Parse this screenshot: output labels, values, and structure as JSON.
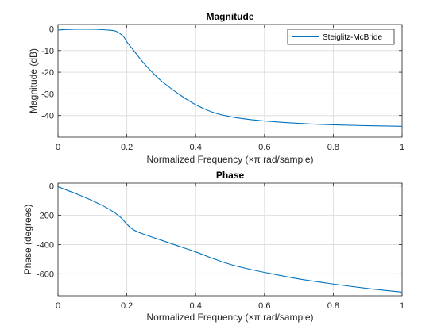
{
  "chart_data": [
    {
      "type": "line",
      "title": "Magnitude",
      "xlabel": "Normalized  Frequency    (×π  rad/sample)",
      "ylabel": "Magnitude (dB)",
      "xlim": [
        0,
        1
      ],
      "ylim": [
        -50,
        2
      ],
      "xticks": [
        0,
        0.2,
        0.4,
        0.6,
        0.8,
        1
      ],
      "xtick_labels": [
        "0",
        "0.2",
        "0.4",
        "0.6",
        "0.8",
        "1"
      ],
      "yticks": [
        0,
        -10,
        -20,
        -30,
        -40
      ],
      "ytick_labels": [
        "0",
        "-10",
        "-20",
        "-30",
        "-40"
      ],
      "grid": true,
      "legend": {
        "placement": "top-right",
        "entries": [
          "Steiglitz-McBride"
        ]
      },
      "series": [
        {
          "name": "Steiglitz-McBride",
          "color": "#0072bd",
          "x": [
            0,
            0.05,
            0.1,
            0.15,
            0.17,
            0.19,
            0.2,
            0.22,
            0.25,
            0.28,
            0.3,
            0.35,
            0.4,
            0.45,
            0.5,
            0.55,
            0.6,
            0.7,
            0.8,
            0.9,
            1.0
          ],
          "y": [
            -0.5,
            -0.2,
            -0.2,
            -0.6,
            -1.2,
            -3.5,
            -6,
            -10,
            -16,
            -21,
            -24,
            -30,
            -35,
            -38.5,
            -40.5,
            -41.7,
            -42.5,
            -43.6,
            -44.3,
            -44.7,
            -45
          ]
        }
      ]
    },
    {
      "type": "line",
      "title": "Phase",
      "xlabel": "Normalized  Frequency    (×π  rad/sample)",
      "ylabel": "Phase (degrees)",
      "xlim": [
        0,
        1
      ],
      "ylim": [
        -750,
        20
      ],
      "xticks": [
        0,
        0.2,
        0.4,
        0.6,
        0.8,
        1
      ],
      "xtick_labels": [
        "0",
        "0.2",
        "0.4",
        "0.6",
        "0.8",
        "1"
      ],
      "yticks": [
        0,
        -200,
        -400,
        -600
      ],
      "ytick_labels": [
        "0",
        "-200",
        "-400",
        "-600"
      ],
      "grid": true,
      "series": [
        {
          "color": "#0072bd",
          "x": [
            0,
            0.05,
            0.1,
            0.15,
            0.18,
            0.2,
            0.22,
            0.25,
            0.3,
            0.35,
            0.4,
            0.45,
            0.5,
            0.55,
            0.6,
            0.7,
            0.8,
            0.9,
            1.0
          ],
          "y": [
            -5,
            -50,
            -100,
            -160,
            -210,
            -260,
            -300,
            -330,
            -370,
            -410,
            -450,
            -495,
            -535,
            -565,
            -590,
            -635,
            -670,
            -700,
            -725
          ]
        }
      ]
    }
  ]
}
